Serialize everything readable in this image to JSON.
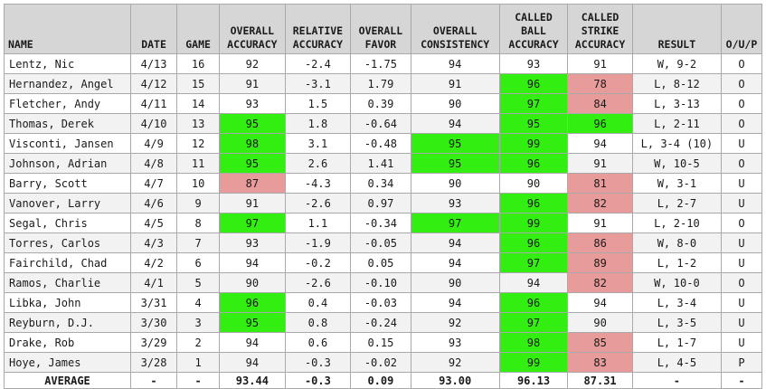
{
  "columns": [
    "NAME",
    "DATE",
    "GAME",
    "OVERALL ACCURACY",
    "RELATIVE ACCURACY",
    "OVERALL FAVOR",
    "OVERALL CONSISTENCY",
    "CALLED BALL ACCURACY",
    "CALLED STRIKE ACCURACY",
    "RESULT",
    "O/U/P"
  ],
  "highlight_colors": {
    "green": "#33ee11",
    "red": "#e79b9b"
  },
  "rows": [
    {
      "cells": [
        "Lentz, Nic",
        "4/13",
        "16",
        "92",
        "-2.4",
        "-1.75",
        "94",
        "93",
        "91",
        "W, 9-2",
        "O"
      ],
      "green": [],
      "red": []
    },
    {
      "cells": [
        "Hernandez, Angel",
        "4/12",
        "15",
        "91",
        "-3.1",
        "1.79",
        "91",
        "96",
        "78",
        "L, 8-12",
        "O"
      ],
      "green": [
        7
      ],
      "red": [
        8
      ]
    },
    {
      "cells": [
        "Fletcher, Andy",
        "4/11",
        "14",
        "93",
        "1.5",
        "0.39",
        "90",
        "97",
        "84",
        "L, 3-13",
        "O"
      ],
      "green": [
        7
      ],
      "red": [
        8
      ]
    },
    {
      "cells": [
        "Thomas, Derek",
        "4/10",
        "13",
        "95",
        "1.8",
        "-0.64",
        "94",
        "95",
        "96",
        "L, 2-11",
        "O"
      ],
      "green": [
        3,
        7,
        8
      ],
      "red": []
    },
    {
      "cells": [
        "Visconti, Jansen",
        "4/9",
        "12",
        "98",
        "3.1",
        "-0.48",
        "95",
        "99",
        "94",
        "L, 3-4 (10)",
        "U"
      ],
      "green": [
        3,
        6,
        7
      ],
      "red": []
    },
    {
      "cells": [
        "Johnson, Adrian",
        "4/8",
        "11",
        "95",
        "2.6",
        "1.41",
        "95",
        "96",
        "91",
        "W, 10-5",
        "O"
      ],
      "green": [
        3,
        6,
        7
      ],
      "red": []
    },
    {
      "cells": [
        "Barry, Scott",
        "4/7",
        "10",
        "87",
        "-4.3",
        "0.34",
        "90",
        "90",
        "81",
        "W, 3-1",
        "U"
      ],
      "green": [],
      "red": [
        3,
        8
      ]
    },
    {
      "cells": [
        "Vanover, Larry",
        "4/6",
        "9",
        "91",
        "-2.6",
        "0.97",
        "93",
        "96",
        "82",
        "L, 2-7",
        "U"
      ],
      "green": [
        7
      ],
      "red": [
        8
      ]
    },
    {
      "cells": [
        "Segal, Chris",
        "4/5",
        "8",
        "97",
        "1.1",
        "-0.34",
        "97",
        "99",
        "91",
        "L, 2-10",
        "O"
      ],
      "green": [
        3,
        6,
        7
      ],
      "red": []
    },
    {
      "cells": [
        "Torres, Carlos",
        "4/3",
        "7",
        "93",
        "-1.9",
        "-0.05",
        "94",
        "96",
        "86",
        "W, 8-0",
        "U"
      ],
      "green": [
        7
      ],
      "red": [
        8
      ]
    },
    {
      "cells": [
        "Fairchild, Chad",
        "4/2",
        "6",
        "94",
        "-0.2",
        "0.05",
        "94",
        "97",
        "89",
        "L, 1-2",
        "U"
      ],
      "green": [
        7
      ],
      "red": [
        8
      ]
    },
    {
      "cells": [
        "Ramos, Charlie",
        "4/1",
        "5",
        "90",
        "-2.6",
        "-0.10",
        "90",
        "94",
        "82",
        "W, 10-0",
        "O"
      ],
      "green": [],
      "red": [
        8
      ]
    },
    {
      "cells": [
        "Libka, John",
        "3/31",
        "4",
        "96",
        "0.4",
        "-0.03",
        "94",
        "96",
        "94",
        "L, 3-4",
        "U"
      ],
      "green": [
        3,
        7
      ],
      "red": []
    },
    {
      "cells": [
        "Reyburn, D.J.",
        "3/30",
        "3",
        "95",
        "0.8",
        "-0.24",
        "92",
        "97",
        "90",
        "L, 3-5",
        "U"
      ],
      "green": [
        3,
        7
      ],
      "red": []
    },
    {
      "cells": [
        "Drake, Rob",
        "3/29",
        "2",
        "94",
        "0.6",
        "0.15",
        "93",
        "98",
        "85",
        "L, 1-7",
        "U"
      ],
      "green": [
        7
      ],
      "red": [
        8
      ]
    },
    {
      "cells": [
        "Hoye, James",
        "3/28",
        "1",
        "94",
        "-0.3",
        "-0.02",
        "92",
        "99",
        "83",
        "L, 4-5",
        "P"
      ],
      "green": [
        7
      ],
      "red": [
        8
      ]
    }
  ],
  "average": [
    "AVERAGE",
    "-",
    "-",
    "93.44",
    "-0.3",
    "0.09",
    "93.00",
    "96.13",
    "87.31",
    "-",
    "-"
  ]
}
